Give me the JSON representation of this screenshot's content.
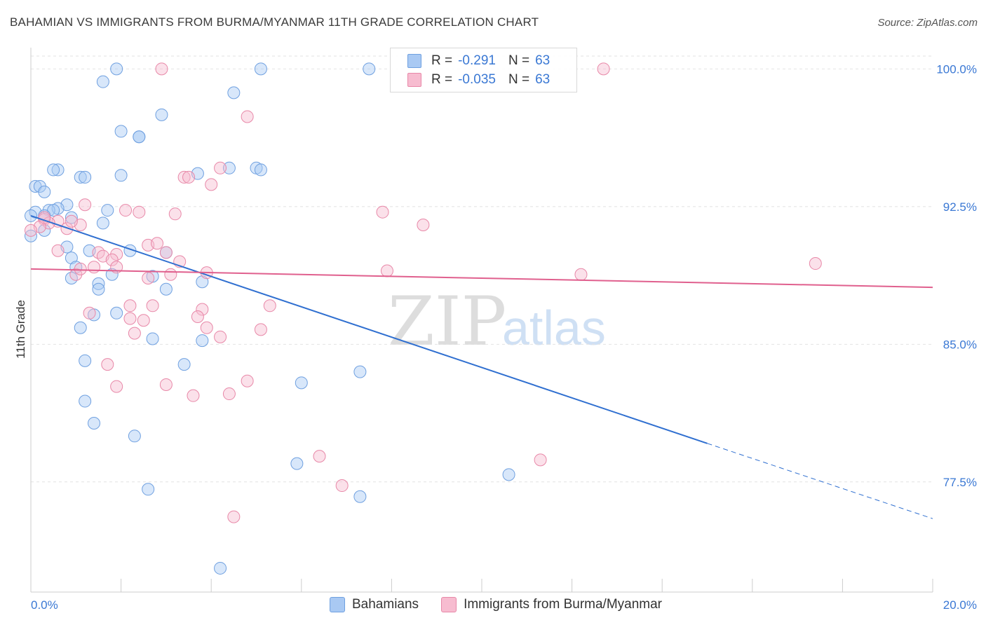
{
  "header": {
    "title": "BAHAMIAN VS IMMIGRANTS FROM BURMA/MYANMAR 11TH GRADE CORRELATION CHART",
    "source": "Source: ZipAtlas.com"
  },
  "watermark": {
    "zip": "ZIP",
    "atlas": "atlas"
  },
  "legend_top": [
    {
      "r_label": "R =",
      "r_value": "-0.291",
      "n_label": "N =",
      "n_value": "63",
      "color": "#a9c9f3"
    },
    {
      "r_label": "R =",
      "r_value": "-0.035",
      "n_label": "N =",
      "n_value": "63",
      "color": "#f7bcd0"
    }
  ],
  "chart_data": {
    "type": "scatter",
    "title": "BAHAMIAN VS IMMIGRANTS FROM BURMA/MYANMAR 11TH GRADE CORRELATION CHART",
    "xlabel": "",
    "ylabel": "11th Grade",
    "xlim": [
      0,
      20
    ],
    "ylim": [
      71.5,
      100.7
    ],
    "x_tick_labels": [
      "0.0%",
      "20.0%"
    ],
    "y_ticks": [
      77.5,
      85.0,
      92.5,
      100.0
    ],
    "y_tick_labels": [
      "77.5%",
      "85.0%",
      "92.5%",
      "100.0%"
    ],
    "grid": true,
    "legend_position": "bottom",
    "series": [
      {
        "name": "Bahamians",
        "color": "#a9c9f3",
        "edge": "#6fa0e0",
        "trend": {
          "x": [
            0,
            15
          ],
          "y": [
            92.0,
            79.6
          ],
          "dashed_to": [
            20,
            75.5
          ],
          "color": "#2f6fd0"
        },
        "points": [
          [
            1.9,
            100.0
          ],
          [
            5.1,
            100.0
          ],
          [
            7.5,
            100.0
          ],
          [
            1.6,
            99.3
          ],
          [
            4.5,
            98.7
          ],
          [
            2.9,
            97.5
          ],
          [
            2.0,
            96.6
          ],
          [
            2.4,
            96.3
          ],
          [
            2.4,
            96.3
          ],
          [
            0.6,
            94.5
          ],
          [
            0.5,
            94.5
          ],
          [
            4.4,
            94.6
          ],
          [
            5.0,
            94.6
          ],
          [
            5.1,
            94.5
          ],
          [
            3.7,
            94.3
          ],
          [
            2.0,
            94.2
          ],
          [
            1.1,
            94.1
          ],
          [
            1.2,
            94.1
          ],
          [
            0.1,
            93.6
          ],
          [
            0.2,
            93.6
          ],
          [
            0.3,
            93.3
          ],
          [
            0.8,
            92.6
          ],
          [
            0.6,
            92.4
          ],
          [
            0.4,
            92.3
          ],
          [
            0.5,
            92.3
          ],
          [
            0.1,
            92.2
          ],
          [
            1.7,
            92.3
          ],
          [
            0.3,
            92.0
          ],
          [
            0.9,
            91.9
          ],
          [
            1.6,
            91.6
          ],
          [
            0.3,
            91.2
          ],
          [
            0.0,
            90.9
          ],
          [
            0.8,
            90.3
          ],
          [
            2.2,
            90.1
          ],
          [
            1.3,
            90.1
          ],
          [
            3.0,
            90.0
          ],
          [
            0.9,
            89.7
          ],
          [
            1.0,
            89.2
          ],
          [
            2.7,
            88.7
          ],
          [
            1.8,
            88.8
          ],
          [
            0.9,
            88.6
          ],
          [
            3.8,
            88.4
          ],
          [
            1.5,
            88.3
          ],
          [
            1.5,
            88.0
          ],
          [
            3.0,
            88.0
          ],
          [
            1.9,
            86.7
          ],
          [
            1.4,
            86.6
          ],
          [
            1.1,
            85.9
          ],
          [
            2.7,
            85.3
          ],
          [
            3.8,
            85.2
          ],
          [
            1.2,
            84.1
          ],
          [
            3.4,
            83.9
          ],
          [
            7.3,
            83.5
          ],
          [
            6.0,
            82.9
          ],
          [
            1.2,
            81.9
          ],
          [
            1.4,
            80.7
          ],
          [
            2.3,
            80.0
          ],
          [
            5.9,
            78.5
          ],
          [
            10.6,
            77.9
          ],
          [
            2.6,
            77.1
          ],
          [
            7.3,
            76.7
          ],
          [
            4.2,
            72.8
          ],
          [
            0.0,
            92.0
          ]
        ]
      },
      {
        "name": "Immigrants from Burma/Myanmar",
        "color": "#f7bcd0",
        "edge": "#e888a8",
        "trend": {
          "x": [
            0,
            20
          ],
          "y": [
            89.1,
            88.1
          ],
          "color": "#e0608e"
        },
        "points": [
          [
            2.9,
            100.0
          ],
          [
            12.7,
            100.0
          ],
          [
            4.8,
            97.4
          ],
          [
            3.4,
            94.1
          ],
          [
            3.5,
            94.1
          ],
          [
            4.2,
            94.6
          ],
          [
            4.0,
            93.7
          ],
          [
            1.2,
            92.6
          ],
          [
            2.1,
            92.3
          ],
          [
            2.4,
            92.2
          ],
          [
            3.2,
            92.1
          ],
          [
            7.8,
            92.2
          ],
          [
            8.7,
            91.5
          ],
          [
            0.3,
            91.8
          ],
          [
            0.6,
            91.7
          ],
          [
            0.4,
            91.6
          ],
          [
            1.1,
            91.5
          ],
          [
            0.2,
            91.4
          ],
          [
            0.8,
            91.3
          ],
          [
            0.0,
            91.2
          ],
          [
            2.6,
            90.4
          ],
          [
            2.8,
            90.5
          ],
          [
            0.6,
            90.1
          ],
          [
            3.0,
            90.0
          ],
          [
            1.5,
            90.0
          ],
          [
            1.9,
            89.9
          ],
          [
            1.6,
            89.8
          ],
          [
            1.8,
            89.6
          ],
          [
            3.3,
            89.5
          ],
          [
            1.4,
            89.2
          ],
          [
            7.9,
            89.0
          ],
          [
            1.0,
            88.8
          ],
          [
            3.1,
            88.8
          ],
          [
            12.2,
            88.8
          ],
          [
            17.4,
            89.4
          ],
          [
            5.3,
            87.1
          ],
          [
            2.2,
            87.1
          ],
          [
            2.7,
            87.1
          ],
          [
            3.8,
            86.9
          ],
          [
            1.3,
            86.7
          ],
          [
            3.7,
            86.5
          ],
          [
            2.2,
            86.4
          ],
          [
            2.5,
            86.3
          ],
          [
            3.9,
            85.9
          ],
          [
            5.1,
            85.8
          ],
          [
            2.3,
            85.6
          ],
          [
            4.2,
            85.4
          ],
          [
            1.7,
            83.9
          ],
          [
            1.9,
            82.7
          ],
          [
            3.0,
            82.8
          ],
          [
            4.8,
            83.0
          ],
          [
            3.6,
            82.2
          ],
          [
            4.4,
            82.3
          ],
          [
            6.4,
            78.9
          ],
          [
            11.3,
            78.7
          ],
          [
            6.9,
            77.3
          ],
          [
            4.5,
            75.6
          ],
          [
            0.3,
            91.9
          ],
          [
            2.6,
            88.6
          ],
          [
            1.1,
            89.1
          ],
          [
            3.9,
            88.9
          ],
          [
            0.9,
            91.7
          ],
          [
            1.9,
            89.2
          ]
        ]
      }
    ]
  }
}
